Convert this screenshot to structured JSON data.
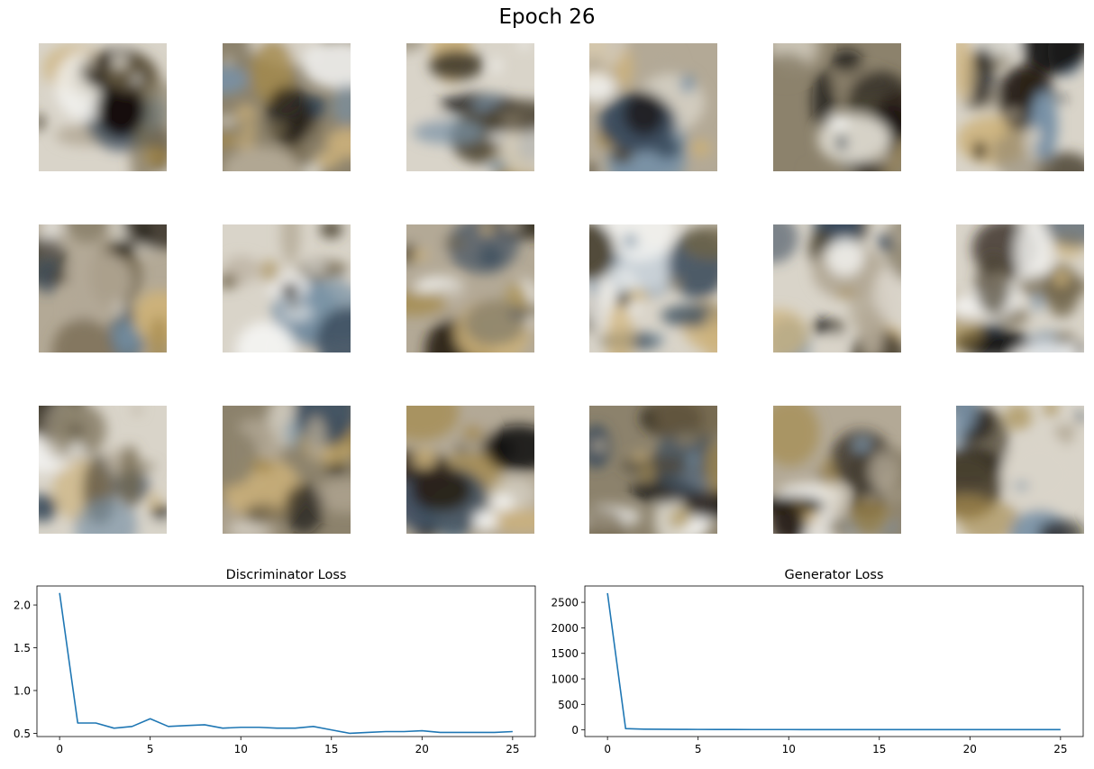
{
  "suptitle": "Epoch 26",
  "samples": {
    "rows": 3,
    "cols": 6,
    "palette": [
      "#f4f4f2",
      "#d9d4c9",
      "#b3a996",
      "#8c826c",
      "#6f6348",
      "#4b4332",
      "#2a2319",
      "#120d0a",
      "#3c4d5e",
      "#7891a6",
      "#a48a4c",
      "#cdb27a"
    ]
  },
  "chart_data": [
    {
      "type": "line",
      "title": "Discriminator Loss",
      "xlabel": "",
      "ylabel": "",
      "x": [
        0,
        1,
        2,
        3,
        4,
        5,
        6,
        7,
        8,
        9,
        10,
        11,
        12,
        13,
        14,
        15,
        16,
        17,
        18,
        19,
        20,
        21,
        22,
        23,
        24,
        25
      ],
      "series": [
        {
          "values": [
            2.14,
            0.62,
            0.62,
            0.56,
            0.58,
            0.67,
            0.58,
            0.59,
            0.6,
            0.56,
            0.57,
            0.57,
            0.56,
            0.56,
            0.58,
            0.54,
            0.5,
            0.51,
            0.52,
            0.52,
            0.53,
            0.51,
            0.51,
            0.51,
            0.51,
            0.52
          ],
          "color": "#1f77b4"
        }
      ],
      "xlim": [
        -1.25,
        26.25
      ],
      "ylim": [
        0.462,
        2.222
      ],
      "xticks": [
        0,
        5,
        10,
        15,
        20,
        25
      ],
      "xtick_labels": [
        "0",
        "5",
        "10",
        "15",
        "20",
        "25"
      ],
      "yticks": [
        0.5,
        1.0,
        1.5,
        2.0
      ],
      "ytick_labels": [
        "0.5",
        "1.0",
        "1.5",
        "2.0"
      ],
      "grid": false
    },
    {
      "type": "line",
      "title": "Generator Loss",
      "xlabel": "",
      "ylabel": "",
      "x": [
        0,
        1,
        2,
        3,
        4,
        5,
        6,
        7,
        8,
        9,
        10,
        11,
        12,
        13,
        14,
        15,
        16,
        17,
        18,
        19,
        20,
        21,
        22,
        23,
        24,
        25
      ],
      "series": [
        {
          "values": [
            2680,
            25,
            15,
            12,
            10,
            9,
            8,
            8,
            7,
            7,
            7,
            6,
            6,
            6,
            6,
            6,
            6,
            5,
            5,
            5,
            5,
            5,
            5,
            5,
            5,
            5
          ],
          "color": "#1f77b4"
        }
      ],
      "xlim": [
        -1.25,
        26.25
      ],
      "ylim": [
        -130,
        2820
      ],
      "xticks": [
        0,
        5,
        10,
        15,
        20,
        25
      ],
      "xtick_labels": [
        "0",
        "5",
        "10",
        "15",
        "20",
        "25"
      ],
      "yticks": [
        0,
        500,
        1000,
        1500,
        2000,
        2500
      ],
      "ytick_labels": [
        "0",
        "500",
        "1000",
        "1500",
        "2000",
        "2500"
      ],
      "grid": false
    }
  ]
}
